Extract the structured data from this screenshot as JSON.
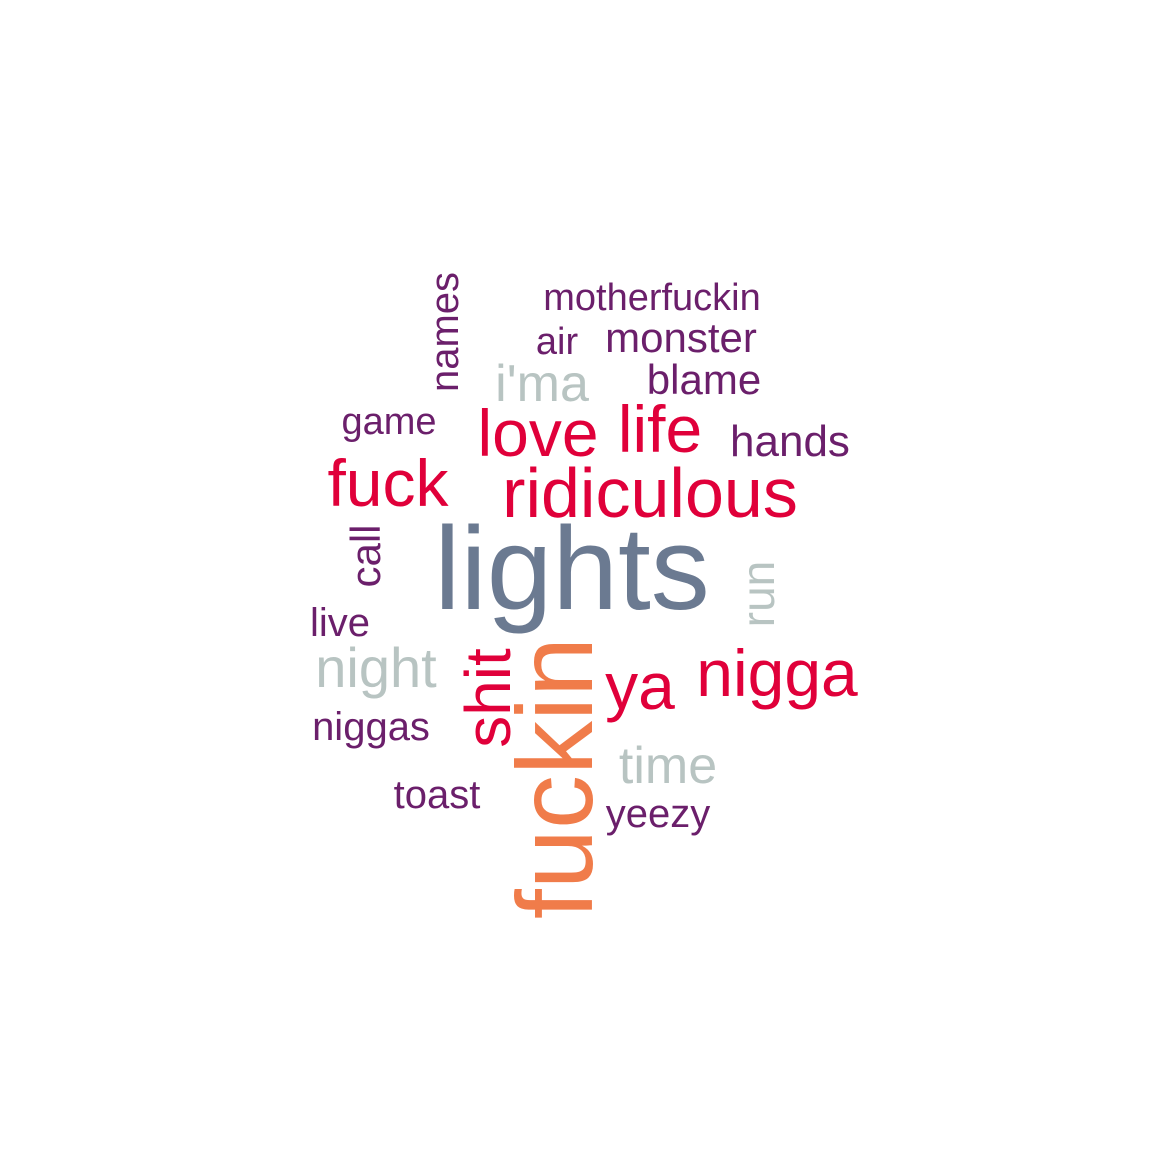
{
  "palette": {
    "slate": "#6b7a91",
    "orange": "#f07c4a",
    "crimson": "#e0003a",
    "plum": "#6b1f6b",
    "gray": "#b8c4c2"
  },
  "words": [
    {
      "key": "lights",
      "text": "lights",
      "color": "#6b7a91"
    },
    {
      "key": "fuckin",
      "text": "fuckin",
      "color": "#f07c4a"
    },
    {
      "key": "ridiculous",
      "text": "ridiculous",
      "color": "#e0003a"
    },
    {
      "key": "love",
      "text": "love",
      "color": "#e0003a"
    },
    {
      "key": "life",
      "text": "life",
      "color": "#e0003a"
    },
    {
      "key": "fuck",
      "text": "fuck",
      "color": "#e0003a"
    },
    {
      "key": "nigga",
      "text": "nigga",
      "color": "#e0003a"
    },
    {
      "key": "ya",
      "text": "ya",
      "color": "#e0003a"
    },
    {
      "key": "shit",
      "text": "shit",
      "color": "#e0003a"
    },
    {
      "key": "night",
      "text": "night",
      "color": "#b8c4c2"
    },
    {
      "key": "time",
      "text": "time",
      "color": "#b8c4c2"
    },
    {
      "key": "ima",
      "text": "i'ma",
      "color": "#b8c4c2"
    },
    {
      "key": "run",
      "text": "run",
      "color": "#b8c4c2"
    },
    {
      "key": "motherfuckin",
      "text": "motherfuckin",
      "color": "#6b1f6b"
    },
    {
      "key": "monster",
      "text": "monster",
      "color": "#6b1f6b"
    },
    {
      "key": "air",
      "text": "air",
      "color": "#6b1f6b"
    },
    {
      "key": "blame",
      "text": "blame",
      "color": "#6b1f6b"
    },
    {
      "key": "hands",
      "text": "hands",
      "color": "#6b1f6b"
    },
    {
      "key": "game",
      "text": "game",
      "color": "#6b1f6b"
    },
    {
      "key": "names",
      "text": "names",
      "color": "#6b1f6b"
    },
    {
      "key": "call",
      "text": "call",
      "color": "#6b1f6b"
    },
    {
      "key": "live",
      "text": "live",
      "color": "#6b1f6b"
    },
    {
      "key": "niggas",
      "text": "niggas",
      "color": "#6b1f6b"
    },
    {
      "key": "toast",
      "text": "toast",
      "color": "#6b1f6b"
    },
    {
      "key": "yeezy",
      "text": "yeezy",
      "color": "#6b1f6b"
    }
  ]
}
